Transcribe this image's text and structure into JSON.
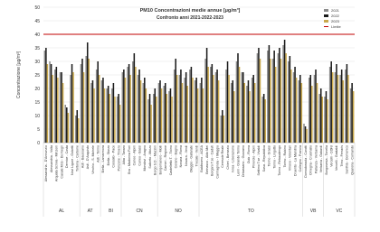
{
  "chart_data": {
    "type": "bar",
    "title": "PM10 Concentrazioni medie annue [µg/m³]",
    "subtitle": "Confronto anni 2021-2022-2023",
    "y_label": "Concentrazione [µg/m³]",
    "categories": [
      "Alessandria - D'Annunzio",
      "Alessandria - Volta",
      "Arquata Scrivia - Minzoni",
      "Casale M.to - De Negri",
      "Dernice - Costa",
      "Novi Ligure - Gobetti",
      "Tortona - Carbone",
      "Asti - Baussano",
      "Asti - D'Acquisto",
      "Vinchio - S. Michele",
      "Asti - Torino",
      "Biella - Lamarmora",
      "Biella - Sturzo",
      "Cossato - Pace",
      "Ponzone - Trivero",
      "Alba - Tanaro",
      "Bra - Madonna Fiori",
      "Cuneo - Alpini",
      "Cuneo - Bassi",
      "Mondovì - Aragno",
      "Saliceto - Moizo",
      "Borgo S.D. - Mazzini",
      "Borgomanero - Molli",
      "Cameri - Regione",
      "Castelletto T. - Ticino",
      "Cerano - Bagno",
      "Novara - Roma",
      "Novara - Verdi",
      "Oleggio - Gallarate",
      "Trecate - Verdi",
      "Baldissero - ACEA",
      "Beinasco - Aldo Mei",
      "Borgaro T.se - Caduti",
      "Carmagnola - I Maggio",
      "Ceresole Reale",
      "Chieri - Bersezio",
      "Ivrea - Liberazione",
      "Leinì - Grande Torino",
      "Orbassano - Gozzano",
      "Oulx - Roma",
      "Pinerolo - Alpini",
      "Settimo T.se - Vivaldi",
      "Susa - Repubblica",
      "Torino - Grassi",
      "Torino - Lingotto",
      "Torino - Rebaudengo",
      "Torino - Rubino",
      "Vinovo - Volontari",
      "Druento - La Mandria",
      "Collegno - Francia",
      "Domodossola - Curotti",
      "Omegna - Crusinallo",
      "Pallanza - Verbania",
      "Verbania - Gabardi",
      "Borgosesia - Tonella",
      "Vercelli - CONI",
      "Vercelli - Gastaldi",
      "Trino - Ferraris",
      "Santhià - Domenico",
      "Quarona - Comando"
    ],
    "category_groups": [
      "AL",
      "AL",
      "AL",
      "AL",
      "AL",
      "AL",
      "AL",
      "AT",
      "AT",
      "AT",
      "AT",
      "BI",
      "BI",
      "BI",
      "BI",
      "CN",
      "CN",
      "CN",
      "CN",
      "CN",
      "CN",
      "CN",
      "NO",
      "NO",
      "NO",
      "NO",
      "NO",
      "NO",
      "NO",
      "NO",
      "TO",
      "TO",
      "TO",
      "TO",
      "TO",
      "TO",
      "TO",
      "TO",
      "TO",
      "TO",
      "TO",
      "TO",
      "TO",
      "TO",
      "TO",
      "TO",
      "TO",
      "TO",
      "TO",
      "TO",
      "VB",
      "VB",
      "VB",
      "VB",
      "VC",
      "VC",
      "VC",
      "VC",
      "VC",
      "VC"
    ],
    "series": [
      {
        "name": "2021",
        "color": "#8c8c8c",
        "values": [
          34,
          30,
          27,
          26,
          14,
          25,
          10,
          29,
          32,
          22,
          27,
          23,
          20,
          20,
          17,
          26,
          28,
          30,
          25,
          22,
          16,
          18,
          22,
          21,
          19,
          27,
          25,
          24,
          27,
          23,
          22,
          31,
          28,
          26,
          10,
          27,
          22,
          30,
          26,
          21,
          24,
          33,
          17,
          34,
          31,
          33,
          36,
          30,
          26,
          23,
          7,
          24,
          25,
          18,
          17,
          28,
          26,
          25,
          27,
          20
        ]
      },
      {
        "name": "2022",
        "color": "#1a1a1a",
        "values": [
          35,
          29,
          28,
          26,
          13,
          29,
          12,
          31,
          37,
          23,
          30,
          24,
          21,
          22,
          18,
          27,
          29,
          33,
          27,
          24,
          18,
          20,
          23,
          22,
          20,
          31,
          27,
          26,
          28,
          24,
          24,
          35,
          29,
          27,
          12,
          30,
          23,
          33,
          26,
          23,
          25,
          35,
          18,
          36,
          34,
          35,
          38,
          32,
          28,
          25,
          6,
          25,
          27,
          20,
          19,
          30,
          29,
          27,
          29,
          22
        ]
      },
      {
        "name": "2023",
        "color": "#c9a84c",
        "values": [
          29,
          25,
          24,
          22,
          11,
          26,
          9,
          26,
          31,
          20,
          25,
          20,
          18,
          17,
          14,
          24,
          25,
          28,
          23,
          20,
          14,
          17,
          20,
          18,
          17,
          25,
          22,
          21,
          24,
          20,
          20,
          28,
          25,
          23,
          10,
          25,
          19,
          28,
          22,
          19,
          22,
          31,
          16,
          31,
          28,
          31,
          33,
          27,
          24,
          22,
          5,
          21,
          22,
          17,
          16,
          26,
          25,
          23,
          25,
          19
        ]
      }
    ],
    "limit": {
      "name": "Limite",
      "value": 40,
      "color": "#c00000"
    },
    "ylim": [
      0,
      50
    ],
    "yticks": [
      0,
      5,
      10,
      15,
      20,
      25,
      30,
      35,
      40,
      45,
      50
    ],
    "grid": true,
    "legend": "upper right"
  }
}
